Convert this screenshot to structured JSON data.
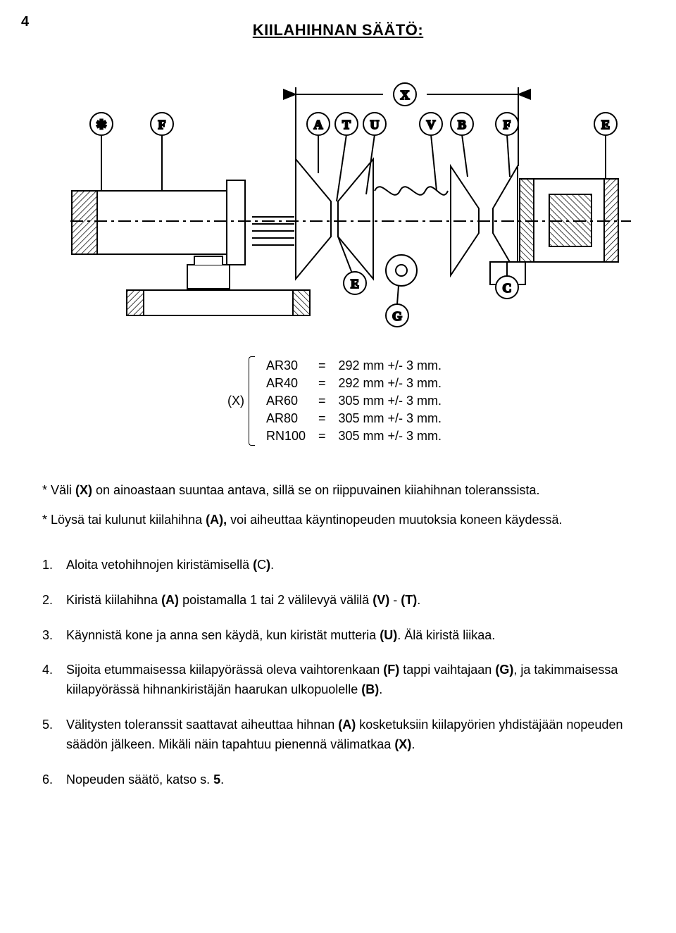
{
  "page_number": "4",
  "title": "KIILAHIHNAN SÄÄTÖ:",
  "diagram": {
    "callouts": [
      "✱",
      "F",
      "A",
      "T",
      "U",
      "V",
      "B",
      "F",
      "E",
      "X",
      "E",
      "C",
      "G"
    ],
    "circle_fill": "#ffffff",
    "circle_stroke": "#000000",
    "line_color": "#000000",
    "line_width": 2,
    "font_size": 18,
    "dimension_bracket_color": "#000000"
  },
  "spec": {
    "label": "(X)",
    "rows": [
      {
        "model": "AR30",
        "eq": "=",
        "val": "292 mm +/- 3 mm."
      },
      {
        "model": "AR40",
        "eq": "=",
        "val": "292 mm +/- 3 mm."
      },
      {
        "model": "AR60",
        "eq": "=",
        "val": "305 mm +/- 3 mm."
      },
      {
        "model": "AR80",
        "eq": "=",
        "val": "305 mm +/- 3 mm."
      },
      {
        "model": "RN100",
        "eq": "=",
        "val": "305 mm +/- 3 mm."
      }
    ]
  },
  "notes": {
    "n1_a": "* Väli ",
    "n1_b": "(X)",
    "n1_c": " on ainoastaan suuntaa antava, sillä se on riippuvainen kiiahihnan toleranssista.",
    "n2_a": "* Löysä tai kulunut kiilahihna ",
    "n2_b": "(A),",
    "n2_c": " voi aiheuttaa käyntinopeuden muutoksia koneen käydessä."
  },
  "list": [
    {
      "num": "1.",
      "parts": [
        {
          "t": "Aloita vetohihnojen kiristämisellä "
        },
        {
          "t": "(",
          "b": true
        },
        {
          "t": "C"
        },
        {
          "t": ")",
          "b": true
        },
        {
          "t": "."
        }
      ]
    },
    {
      "num": "2.",
      "parts": [
        {
          "t": "Kiristä kiilahihna "
        },
        {
          "t": "(A)",
          "b": true
        },
        {
          "t": " poistamalla 1 tai 2 välilevyä välilä "
        },
        {
          "t": "(V)",
          "b": true
        },
        {
          "t": " - "
        },
        {
          "t": "(T)",
          "b": true
        },
        {
          "t": "."
        }
      ]
    },
    {
      "num": "3.",
      "parts": [
        {
          "t": "Käynnistä kone ja anna sen käydä, kun kiristät mutteria "
        },
        {
          "t": "(U)",
          "b": true
        },
        {
          "t": ". Älä kiristä liikaa."
        }
      ]
    },
    {
      "num": "4.",
      "parts": [
        {
          "t": "Sijoita etummaisessa kiilapyörässä oleva vaihtorenkaan "
        },
        {
          "t": "(F)",
          "b": true
        },
        {
          "t": " tappi vaihtajaan "
        },
        {
          "t": "(G)",
          "b": true
        },
        {
          "t": ", ja takimmaisessa kiilapyörässä hihnankiristäjän haarukan ulkopuolelle "
        },
        {
          "t": "(B)",
          "b": true
        },
        {
          "t": "."
        }
      ]
    },
    {
      "num": "5.",
      "parts": [
        {
          "t": "Välitysten toleranssit saattavat aiheuttaa hihnan "
        },
        {
          "t": "(A)",
          "b": true
        },
        {
          "t": " kosketuksiin kiilapyörien yhdistäjään nopeuden säädön jälkeen. Mikäli näin tapahtuu pienennä välimatkaa "
        },
        {
          "t": "(X)",
          "b": true
        },
        {
          "t": "."
        }
      ]
    },
    {
      "num": "6.",
      "parts": [
        {
          "t": "Nopeuden säätö, katso s. "
        },
        {
          "t": "5",
          "b": true
        },
        {
          "t": "."
        }
      ]
    }
  ]
}
